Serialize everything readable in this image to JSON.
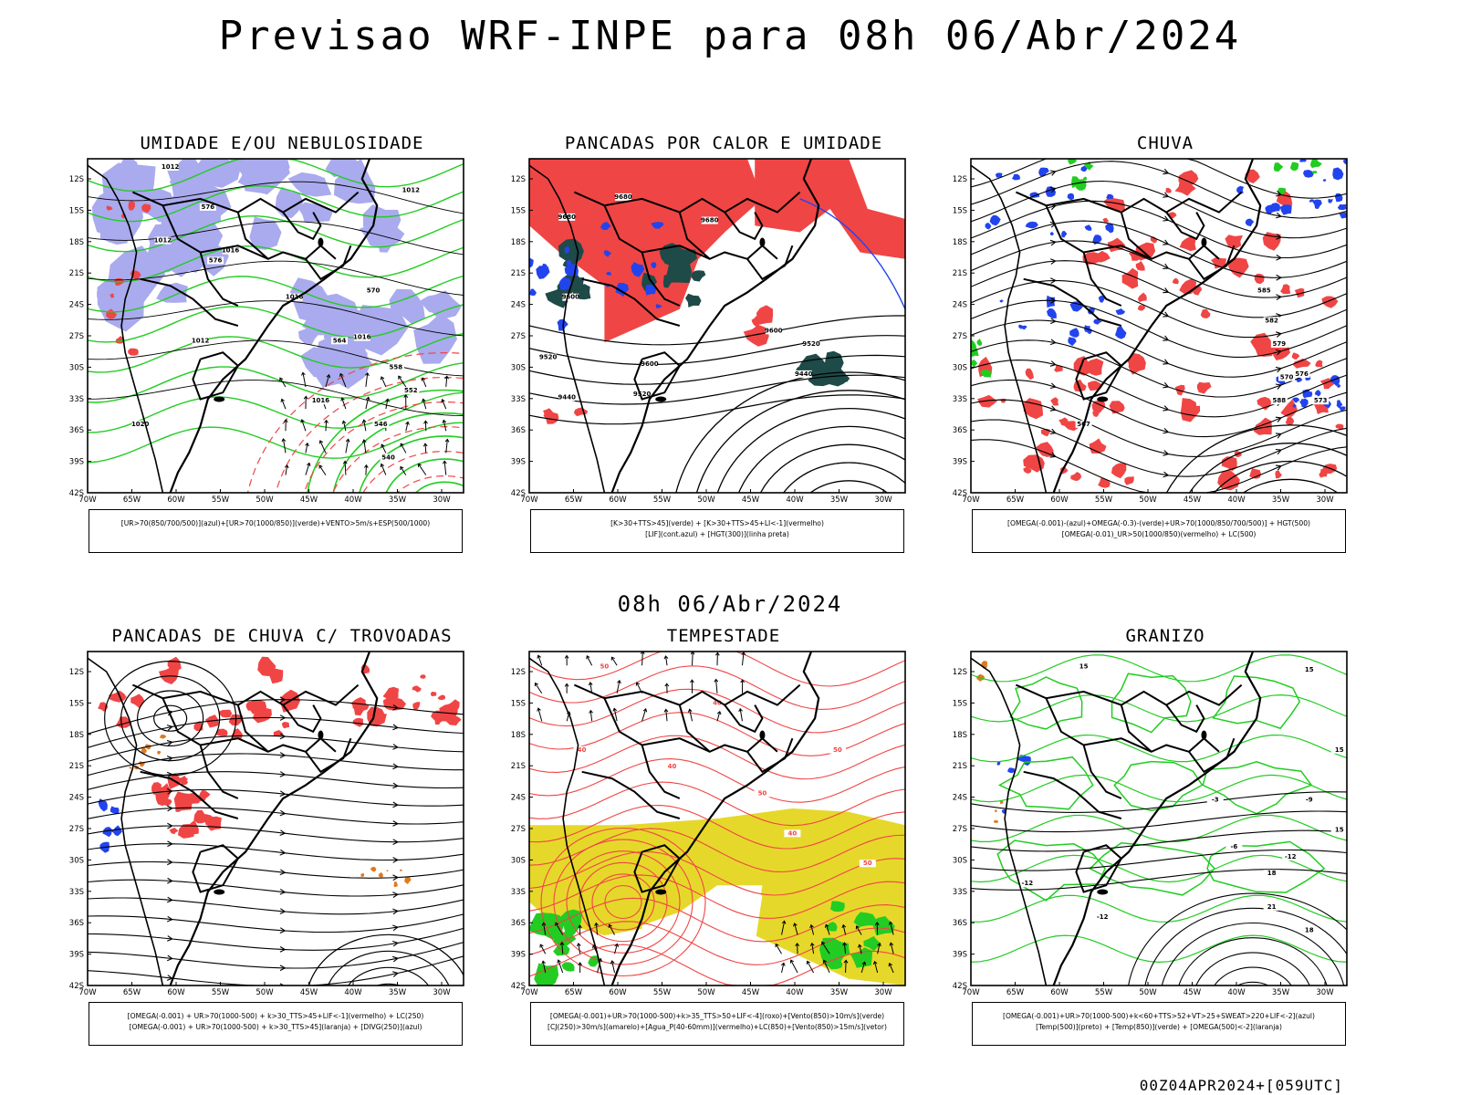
{
  "header": {
    "title": "Previsao WRF-INPE  para 08h 06/Abr/2024",
    "mid_date": "08h 06/Abr/2024",
    "footer": "00Z04APR2024+[059UTC]"
  },
  "axes": {
    "lat_labels": [
      "12S",
      "15S",
      "18S",
      "21S",
      "24S",
      "27S",
      "30S",
      "33S",
      "36S",
      "39S",
      "42S"
    ],
    "lon_labels": [
      "70W",
      "65W",
      "60W",
      "55W",
      "50W",
      "45W",
      "40W",
      "35W",
      "30W"
    ]
  },
  "panels": [
    {
      "id": "umidade",
      "title": "UMIDADE E/OU NEBULOSIDADE",
      "legend": [
        "[UR>70(850/700/500)](azul)+[UR>70(1000/850)](verde)+VENTO>5m/s+ESP(500/1000)"
      ],
      "contour_labels": [
        "1012",
        "1012",
        "1012",
        "1012",
        "1016",
        "1016",
        "1016",
        "1016",
        "1020",
        "576",
        "576",
        "570",
        "564",
        "558",
        "552",
        "546",
        "540"
      ]
    },
    {
      "id": "pancadas-calor",
      "title": "PANCADAS POR CALOR E UMIDADE",
      "legend": [
        "[K>30+TTS>45](verde) + [K>30+TTS>45+LI<-1](vermelho)",
        "[LIF](cont.azul) + [HGT(300)](linha preta)"
      ],
      "contour_labels": [
        "9680",
        "9680",
        "9680",
        "9600",
        "9600",
        "9600",
        "9520",
        "9520",
        "9520",
        "9440",
        "9440"
      ]
    },
    {
      "id": "chuva",
      "title": "CHUVA",
      "legend": [
        "[OMEGA(-0.001)-(azul)+OMEGA(-0.3)-(verde)+UR>70(1000/850/700/500)] + HGT(500)",
        "[OMEGA(-0.01)_UR>50(1000/850)(vermelho) + LC(500)"
      ],
      "contour_labels": [
        "585",
        "582",
        "579",
        "576",
        "573",
        "570",
        "567",
        "588"
      ]
    },
    {
      "id": "pancadas-trovoadas",
      "title": "PANCADAS DE CHUVA C/ TROVOADAS",
      "legend": [
        "[OMEGA(-0.001) + UR>70(1000-500) + k>30_TTS>45+LIF<-1](vermelho) + LC(250)",
        "[OMEGA(-0.001) + UR>70(1000-500) + k>30_TTS>45](laranja) + [DIVG(250)](azul)"
      ],
      "contour_labels": []
    },
    {
      "id": "tempestade",
      "title": "TEMPESTADE",
      "legend": [
        "[OMEGA(-0.001)+UR>70(1000-500)+k>35_TTS>50+LIF<-4](roxo)+[Vento(850)>10m/s](verde)",
        "[CJ(250)>30m/s](amarelo)+[Agua_P(40-60mm)](vermelho)+LC(850)+[Vento(850)>15m/s](vetor)"
      ],
      "contour_labels": [
        "50",
        "40",
        "40",
        "50",
        "40",
        "40",
        "50",
        "50"
      ]
    },
    {
      "id": "granizo",
      "title": "GRANIZO",
      "legend": [
        "[OMEGA(-0.001)+UR>70(1000-500)+k<60+TTS>52+VT>25+SWEAT>220+LIF<-2](azul)",
        "[Temp(500)](preto) + [Temp(850)](verde) + [OMEGA(500)<-2](laranja)"
      ],
      "contour_labels": [
        "15",
        "15",
        "15",
        "-3",
        "-6",
        "-9",
        "-12",
        "-12",
        "-12",
        "15",
        "18",
        "21",
        "18"
      ]
    }
  ],
  "colors": {
    "red": "#f04545",
    "green": "#22cc22",
    "blue": "#2244ee",
    "lavender": "#aaaaee",
    "darkteal": "#1e4a48",
    "yellow": "#e6d82a",
    "orange": "#e07a20",
    "black": "#000000"
  }
}
